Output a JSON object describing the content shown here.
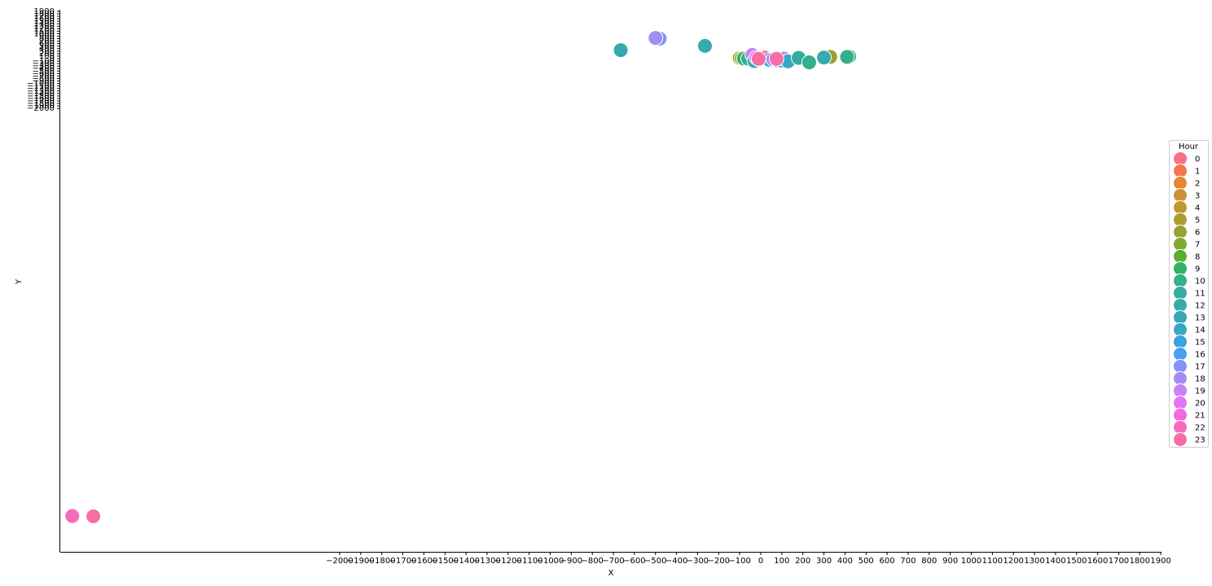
{
  "chart_data": {
    "type": "scatter",
    "xlabel": "X",
    "ylabel": "Y",
    "x_ticks": [
      -2000,
      -1900,
      -1800,
      -1700,
      -1600,
      -1500,
      -1400,
      -1300,
      -1200,
      -1100,
      -1000,
      -900,
      -800,
      -700,
      -600,
      -500,
      -400,
      -300,
      -200,
      -100,
      0,
      100,
      200,
      300,
      400,
      500,
      600,
      700,
      800,
      900,
      1000,
      1100,
      1200,
      1300,
      1400,
      1500,
      1600,
      1700,
      1800,
      1900
    ],
    "y_ticks": [
      -2000,
      -1900,
      -1800,
      -1700,
      -1600,
      -1500,
      -1400,
      -1300,
      -1200,
      -1100,
      -1000,
      -900,
      -800,
      -700,
      -600,
      -500,
      -400,
      -300,
      -200,
      -100,
      0,
      100,
      200,
      300,
      400,
      500,
      600,
      700,
      800,
      900,
      1000,
      1100,
      1200,
      1300,
      1400,
      1500,
      1600,
      1700,
      1800,
      1900
    ],
    "legend": {
      "title": "Hour",
      "placement": "right",
      "entries": [
        {
          "label": "0",
          "color": "#f77189"
        },
        {
          "label": "1",
          "color": "#f3774e"
        },
        {
          "label": "2",
          "color": "#e28832"
        },
        {
          "label": "3",
          "color": "#ce9133"
        },
        {
          "label": "4",
          "color": "#bb9832"
        },
        {
          "label": "5",
          "color": "#aa9d32"
        },
        {
          "label": "6",
          "color": "#99a232"
        },
        {
          "label": "7",
          "color": "#83a832"
        },
        {
          "label": "8",
          "color": "#57b033"
        },
        {
          "label": "9",
          "color": "#32b166"
        },
        {
          "label": "10",
          "color": "#34ae8c"
        },
        {
          "label": "11",
          "color": "#35ac9f"
        },
        {
          "label": "12",
          "color": "#36aaac"
        },
        {
          "label": "13",
          "color": "#37a8b8"
        },
        {
          "label": "14",
          "color": "#38a6c6"
        },
        {
          "label": "15",
          "color": "#3aa3d9"
        },
        {
          "label": "16",
          "color": "#4b9ff2"
        },
        {
          "label": "17",
          "color": "#8193f4"
        },
        {
          "label": "18",
          "color": "#a48cf4"
        },
        {
          "label": "19",
          "color": "#c583f4"
        },
        {
          "label": "20",
          "color": "#e573f3"
        },
        {
          "label": "21",
          "color": "#f567de"
        },
        {
          "label": "22",
          "color": "#f66bbd"
        },
        {
          "label": "23",
          "color": "#f76ea4"
        }
      ]
    },
    "points": [
      {
        "x": -665,
        "y": 340,
        "hour": 12
      },
      {
        "x": -480,
        "y": 800,
        "hour": 17
      },
      {
        "x": -500,
        "y": 830,
        "hour": 18
      },
      {
        "x": -265,
        "y": 510,
        "hour": 12
      },
      {
        "x": -100,
        "y": 20,
        "hour": 6
      },
      {
        "x": -90,
        "y": 10,
        "hour": 7
      },
      {
        "x": -80,
        "y": 0,
        "hour": 9
      },
      {
        "x": -60,
        "y": 0,
        "hour": 10
      },
      {
        "x": -40,
        "y": 150,
        "hour": 19
      },
      {
        "x": -30,
        "y": -100,
        "hour": 13
      },
      {
        "x": -20,
        "y": 40,
        "hour": 20
      },
      {
        "x": -10,
        "y": -20,
        "hour": 16
      },
      {
        "x": 0,
        "y": 20,
        "hour": 21
      },
      {
        "x": 20,
        "y": 40,
        "hour": 22
      },
      {
        "x": 40,
        "y": -50,
        "hour": 15
      },
      {
        "x": 60,
        "y": -30,
        "hour": 18
      },
      {
        "x": 80,
        "y": -70,
        "hour": 17
      },
      {
        "x": 100,
        "y": -80,
        "hour": 16
      },
      {
        "x": 110,
        "y": 0,
        "hour": 19
      },
      {
        "x": 130,
        "y": -110,
        "hour": 14
      },
      {
        "x": 180,
        "y": 30,
        "hour": 11
      },
      {
        "x": 230,
        "y": -150,
        "hour": 10
      },
      {
        "x": 300,
        "y": 60,
        "hour": 7
      },
      {
        "x": 330,
        "y": 70,
        "hour": 6
      },
      {
        "x": 300,
        "y": 40,
        "hour": 12
      },
      {
        "x": 420,
        "y": 80,
        "hour": 9
      },
      {
        "x": 410,
        "y": 70,
        "hour": 10
      },
      {
        "x": -10,
        "y": -10,
        "hour": 23
      },
      {
        "x": 75,
        "y": -10,
        "hour": 23
      },
      {
        "x": -3270,
        "y": -14520,
        "hour": 22
      },
      {
        "x": -3170,
        "y": -14530,
        "hour": 23
      }
    ]
  }
}
